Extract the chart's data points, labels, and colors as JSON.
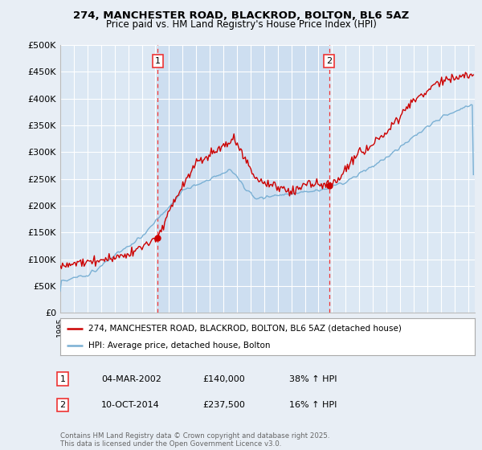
{
  "title1": "274, MANCHESTER ROAD, BLACKROD, BOLTON, BL6 5AZ",
  "title2": "Price paid vs. HM Land Registry's House Price Index (HPI)",
  "bg_color": "#e8eef5",
  "plot_bg_color": "#dce8f4",
  "shade_color": "#ccddf0",
  "grid_color": "#ffffff",
  "sale1_date_num": 2002.17,
  "sale1_label": "1",
  "sale1_price": 140000,
  "sale2_date_num": 2014.78,
  "sale2_label": "2",
  "sale2_price": 237500,
  "legend_line1": "274, MANCHESTER ROAD, BLACKROD, BOLTON, BL6 5AZ (detached house)",
  "legend_line2": "HPI: Average price, detached house, Bolton",
  "table_row1": [
    "1",
    "04-MAR-2002",
    "£140,000",
    "38% ↑ HPI"
  ],
  "table_row2": [
    "2",
    "10-OCT-2014",
    "£237,500",
    "16% ↑ HPI"
  ],
  "footer": "Contains HM Land Registry data © Crown copyright and database right 2025.\nThis data is licensed under the Open Government Licence v3.0.",
  "xmin": 1995,
  "xmax": 2025.5,
  "ymin": 0,
  "ymax": 500000,
  "yticks": [
    0,
    50000,
    100000,
    150000,
    200000,
    250000,
    300000,
    350000,
    400000,
    450000,
    500000
  ],
  "ytick_labels": [
    "£0",
    "£50K",
    "£100K",
    "£150K",
    "£200K",
    "£250K",
    "£300K",
    "£350K",
    "£400K",
    "£450K",
    "£500K"
  ],
  "red_color": "#cc0000",
  "blue_color": "#7ab0d4",
  "sale_line_color": "#ee3333"
}
